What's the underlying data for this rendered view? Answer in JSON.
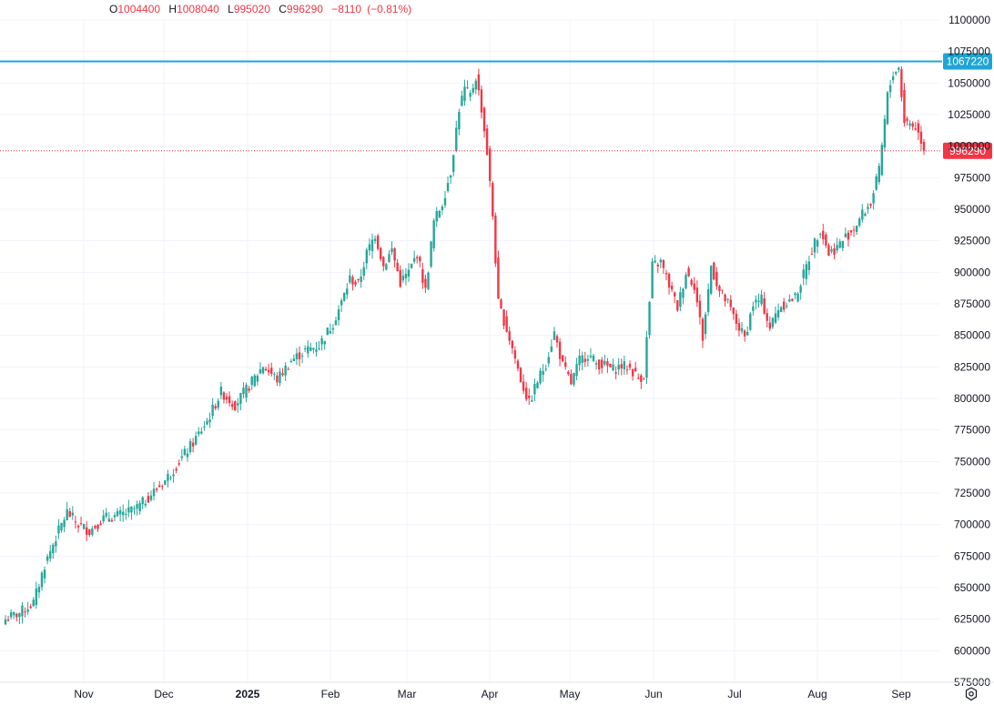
{
  "legend": {
    "open_key": "O",
    "open": "1004400",
    "high_key": "H",
    "high": "1008040",
    "low_key": "L",
    "low": "995020",
    "close_key": "C",
    "close": "996290",
    "change": "−8110",
    "change_pct": "(−0.81%)"
  },
  "settings_icon": "gear-icon",
  "colors": {
    "up": "#26a69a",
    "down": "#f23645",
    "hline": "#1ea5d6",
    "grid": "#f0f3fa",
    "axis_text": "#131722"
  },
  "chart_data": {
    "type": "candlestick",
    "y_axis": {
      "min": 575000,
      "max": 1100000,
      "ticks": [
        1100000,
        1075000,
        1050000,
        1025000,
        1000000,
        975000,
        950000,
        925000,
        900000,
        875000,
        850000,
        825000,
        800000,
        775000,
        750000,
        725000,
        700000,
        675000,
        650000,
        625000,
        600000,
        575000
      ]
    },
    "x_axis": {
      "ticks": [
        "Nov",
        "Dec",
        "2025",
        "Feb",
        "Mar",
        "Apr",
        "May",
        "Jun",
        "Jul",
        "Aug",
        "Sep"
      ]
    },
    "horizontal_line": {
      "value": 1067220,
      "label": "1067220"
    },
    "last_price": {
      "value": 996290,
      "label": "996290"
    },
    "anchor_closes": [
      [
        0,
        625000
      ],
      [
        5,
        630000
      ],
      [
        10,
        638000
      ],
      [
        14,
        668000
      ],
      [
        18,
        690000
      ],
      [
        22,
        710000
      ],
      [
        26,
        700000
      ],
      [
        30,
        695000
      ],
      [
        35,
        705000
      ],
      [
        40,
        707000
      ],
      [
        44,
        710000
      ],
      [
        48,
        715000
      ],
      [
        52,
        724000
      ],
      [
        57,
        735000
      ],
      [
        62,
        750000
      ],
      [
        67,
        765000
      ],
      [
        72,
        782000
      ],
      [
        77,
        805000
      ],
      [
        82,
        795000
      ],
      [
        87,
        810000
      ],
      [
        92,
        826000
      ],
      [
        97,
        815000
      ],
      [
        102,
        830000
      ],
      [
        107,
        838000
      ],
      [
        112,
        842000
      ],
      [
        117,
        860000
      ],
      [
        120,
        876000
      ],
      [
        123,
        895000
      ],
      [
        126,
        890000
      ],
      [
        129,
        915000
      ],
      [
        132,
        930000
      ],
      [
        135,
        905000
      ],
      [
        138,
        918000
      ],
      [
        141,
        892000
      ],
      [
        144,
        900000
      ],
      [
        147,
        915000
      ],
      [
        150,
        885000
      ],
      [
        153,
        940000
      ],
      [
        156,
        955000
      ],
      [
        159,
        980000
      ],
      [
        162,
        1030000
      ],
      [
        164,
        1045000
      ],
      [
        166,
        1040000
      ],
      [
        168,
        1055000
      ],
      [
        170,
        1030000
      ],
      [
        172,
        995000
      ],
      [
        174,
        945000
      ],
      [
        176,
        875000
      ],
      [
        178,
        862000
      ],
      [
        181,
        840000
      ],
      [
        184,
        815000
      ],
      [
        187,
        796000
      ],
      [
        190,
        814000
      ],
      [
        193,
        828000
      ],
      [
        196,
        852000
      ],
      [
        199,
        826000
      ],
      [
        202,
        812000
      ],
      [
        205,
        830000
      ],
      [
        208,
        835000
      ],
      [
        211,
        828000
      ],
      [
        214,
        826000
      ],
      [
        217,
        823000
      ],
      [
        220,
        826000
      ],
      [
        223,
        824000
      ],
      [
        226,
        816000
      ],
      [
        228,
        818000
      ],
      [
        231,
        905000
      ],
      [
        234,
        908000
      ],
      [
        237,
        890000
      ],
      [
        240,
        872000
      ],
      [
        243,
        900000
      ],
      [
        246,
        890000
      ],
      [
        249,
        848000
      ],
      [
        252,
        905000
      ],
      [
        255,
        885000
      ],
      [
        258,
        875000
      ],
      [
        261,
        860000
      ],
      [
        264,
        848000
      ],
      [
        267,
        875000
      ],
      [
        270,
        878000
      ],
      [
        273,
        856000
      ],
      [
        276,
        872000
      ],
      [
        279,
        876000
      ],
      [
        282,
        880000
      ],
      [
        285,
        898000
      ],
      [
        288,
        918000
      ],
      [
        291,
        935000
      ],
      [
        294,
        915000
      ],
      [
        297,
        920000
      ],
      [
        300,
        928000
      ],
      [
        303,
        935000
      ],
      [
        306,
        946000
      ],
      [
        309,
        955000
      ],
      [
        312,
        980000
      ],
      [
        315,
        1040000
      ],
      [
        317,
        1058000
      ],
      [
        319,
        1062000
      ],
      [
        321,
        1020000
      ],
      [
        323,
        1018000
      ],
      [
        325,
        1015000
      ],
      [
        327,
        1005000
      ],
      [
        328,
        996290
      ]
    ]
  }
}
